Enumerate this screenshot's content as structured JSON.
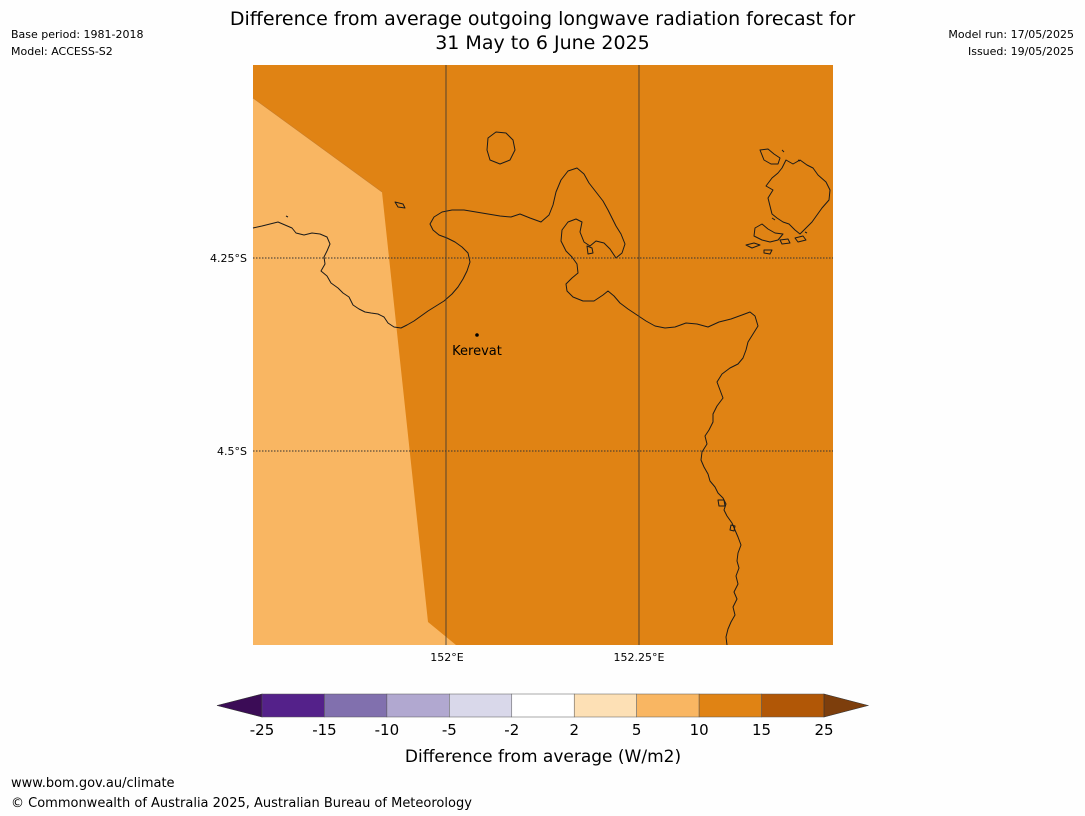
{
  "header": {
    "title_line1": "Difference from average outgoing longwave radiation forecast for",
    "title_line2": "31 May to 6 June 2025",
    "base_period": "Base period: 1981-2018",
    "model": "Model: ACCESS-S2",
    "model_run": "Model run: 17/05/2025",
    "issued": "Issued: 19/05/2025"
  },
  "map": {
    "latitude_labels": [
      "4.25°S",
      "4.5°S"
    ],
    "longitude_labels": [
      "152°E",
      "152.25°E"
    ],
    "place_label": "Kerevat",
    "colors": {
      "main_fill": "#e08314",
      "west_fill": "#f9b662",
      "coastline": "#1a1a1a",
      "gridline": "#333333"
    }
  },
  "legend": {
    "label": "Difference from average (W/m2)",
    "ticks": [
      "-25",
      "-15",
      "-10",
      "-5",
      "-2",
      "2",
      "5",
      "10",
      "15",
      "25"
    ],
    "colors": [
      "#3b0c56",
      "#54218a",
      "#8170ae",
      "#b1a8d0",
      "#d9d8ea",
      "#ffffff",
      "#fde0b5",
      "#f9b662",
      "#e08314",
      "#b15706",
      "#7d3e0c"
    ]
  },
  "footer": {
    "url": "www.bom.gov.au/climate",
    "copyright": "© Commonwealth of Australia 2025, Australian Bureau of Meteorology"
  }
}
